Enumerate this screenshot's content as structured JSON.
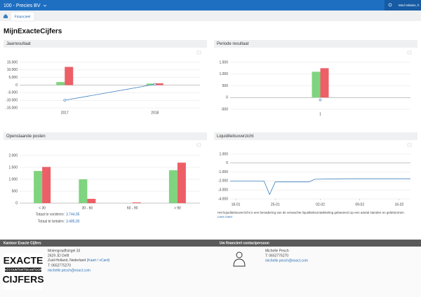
{
  "header": {
    "company": "100 - Precies BV",
    "search": "Med relaties, h",
    "tab": "Financieel"
  },
  "page_title": "MijnExacteCijfers",
  "chart_data": [
    {
      "type": "bar",
      "title": "Jaarresultaat",
      "categories": [
        "2017",
        "2018"
      ],
      "grid": true,
      "ylim": [
        -15000,
        15000
      ],
      "yticks": [
        {
          "value": -15000,
          "label": "-15.000"
        },
        {
          "value": -10000,
          "label": "-10.000"
        },
        {
          "value": -5000,
          "label": "-5.000"
        },
        0,
        {
          "value": 5000,
          "label": "5.000"
        },
        {
          "value": 10000,
          "label": "10.000"
        },
        {
          "value": 15000,
          "label": "15.000"
        }
      ],
      "series": [
        {
          "color": "#7fd47f",
          "values": [
            2000,
            1000
          ]
        },
        {
          "color": "#ec5f67",
          "values": [
            12000,
            1200
          ]
        },
        {
          "type": "line",
          "color": "#3d7fc0",
          "values": [
            -10000,
            500
          ]
        }
      ]
    },
    {
      "type": "bar",
      "title": "Periode resultaat",
      "categories": [
        "1"
      ],
      "grid": true,
      "ylim": [
        -500,
        1500
      ],
      "yticks": [
        {
          "value": -500,
          "label": "-500"
        },
        0,
        500,
        {
          "value": 1000,
          "label": "1.000"
        },
        {
          "value": 1500,
          "label": "1.500"
        }
      ],
      "series": [
        {
          "color": "#7fd47f",
          "values": [
            1100
          ]
        },
        {
          "color": "#ec5f67",
          "values": [
            1250
          ]
        },
        {
          "type": "line",
          "color": "#3d7fc0",
          "values": [
            -100
          ]
        }
      ]
    },
    {
      "type": "bar",
      "title": "Openstaande posten",
      "categories": [
        "< 30",
        "30 - 60",
        "60 - 90",
        "> 90"
      ],
      "grid": true,
      "ylim": [
        0,
        2000
      ],
      "yticks": [
        0,
        500,
        {
          "value": 1000,
          "label": "1.000"
        },
        {
          "value": 1500,
          "label": "1.500"
        },
        {
          "value": 2000,
          "label": "2.000"
        }
      ],
      "series": [
        {
          "color": "#7fd47f",
          "values": [
            1350,
            1000,
            0,
            1380
          ]
        },
        {
          "color": "#ec5f67",
          "values": [
            1520,
            180,
            30,
            1700
          ]
        }
      ]
    },
    {
      "type": "line",
      "title": "Liquiditeitsoverzicht",
      "grid": true,
      "x": [
        -1,
        0,
        5,
        6,
        7,
        13,
        14,
        20,
        31
      ],
      "series": [
        {
          "color": "#3d7fc0",
          "values": [
            -2000,
            -2000,
            -2000,
            -3500,
            -2100,
            -2100,
            -1800,
            -1750,
            -1750
          ]
        }
      ],
      "xlim": [
        -1,
        31
      ],
      "xticks": [
        {
          "value": 0,
          "label": "18-01"
        },
        {
          "value": 7,
          "label": "25-01"
        },
        {
          "value": 15,
          "label": "02-02"
        },
        {
          "value": 22,
          "label": "09-02"
        },
        {
          "value": 29,
          "label": "16-02"
        }
      ],
      "ylim": [
        -4000,
        1000
      ],
      "yticks": [
        {
          "value": -4000,
          "label": "-4.000"
        },
        {
          "value": -3000,
          "label": "-3.000"
        },
        {
          "value": -2000,
          "label": "-2.000"
        },
        {
          "value": -1000,
          "label": "-1.000"
        },
        0,
        {
          "value": 1000,
          "label": "1.000"
        }
      ]
    }
  ],
  "open_totals": [
    {
      "label": "Totaal te vorderen:",
      "value": "3.744,95"
    },
    {
      "label": "Totaal te betalen:",
      "value": "3.485,00"
    }
  ],
  "liquidity_note": {
    "text": "Het liquiditeitsoverzicht is een benadering van de verwachte liquiditeitsontwikkeling gebaseerd op een aantal standen en geldstromen.",
    "link": "Lees meer"
  },
  "footer": {
    "office_heading": "Kantoor Exacte Cijfers",
    "contact_heading": "Uw financieel contactpersoon",
    "logo": [
      "EXACTE",
      "ACCOUNTANTSKANTOOR",
      "CIJFERS"
    ],
    "address": [
      "Molengraaffsingel 33",
      "2629 JD Delft"
    ],
    "region": "Zuid-Holland, Nederland",
    "map_links": "(Kaart / vCard)",
    "phone": "T: 0652775270",
    "email": "michelle.pesch@exact.com",
    "contact": {
      "name": "Michelle Pesch",
      "phone": "T: 0652775270",
      "email": "michelle.pesch@exact.com"
    }
  }
}
